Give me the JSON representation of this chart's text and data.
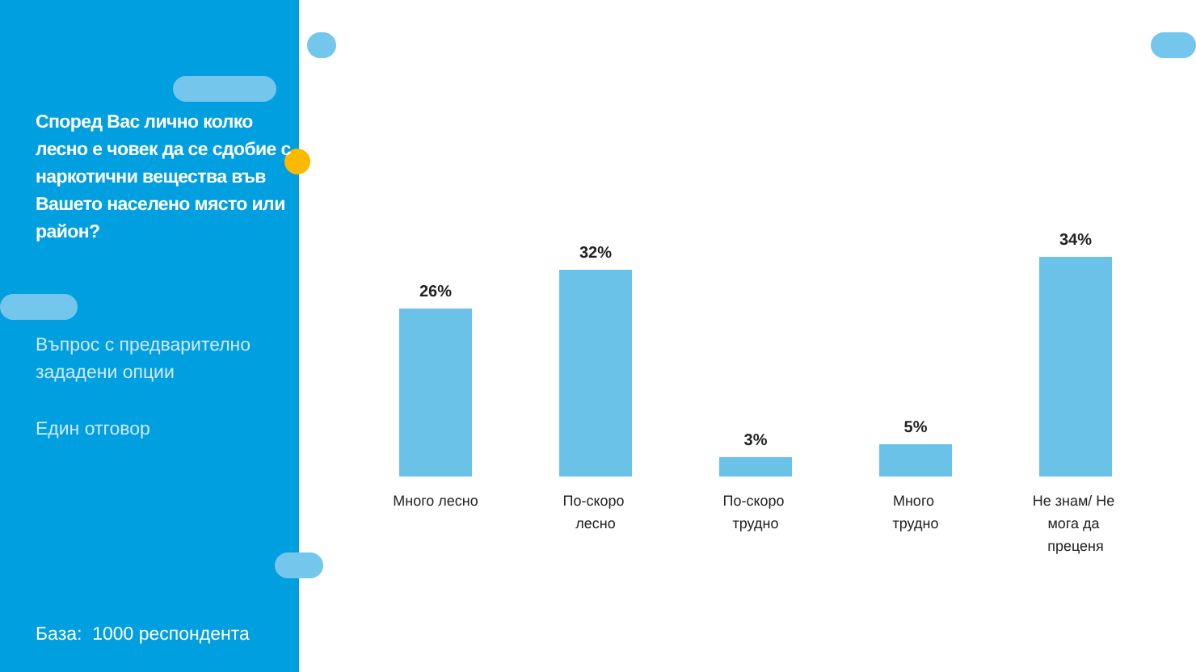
{
  "chart_data": {
    "type": "bar",
    "title": "Според Вас лично колко лесно е човек да се сдобие с наркотични вещества във Вашето населено място или район?",
    "categories": [
      "Много лесно",
      "По-скоро лесно",
      "По-скоро трудно",
      "Много трудно",
      "Не знам/ Не мога да преценя"
    ],
    "values": [
      26,
      32,
      3,
      5,
      34
    ],
    "value_labels": [
      "26%",
      "32%",
      "3%",
      "5%",
      "34%"
    ],
    "color": "#6ac2e8",
    "annotations": [
      "Въпрос с предварително зададени опции",
      "Един отговор",
      "База:  1000 респондента"
    ],
    "grid": false
  }
}
